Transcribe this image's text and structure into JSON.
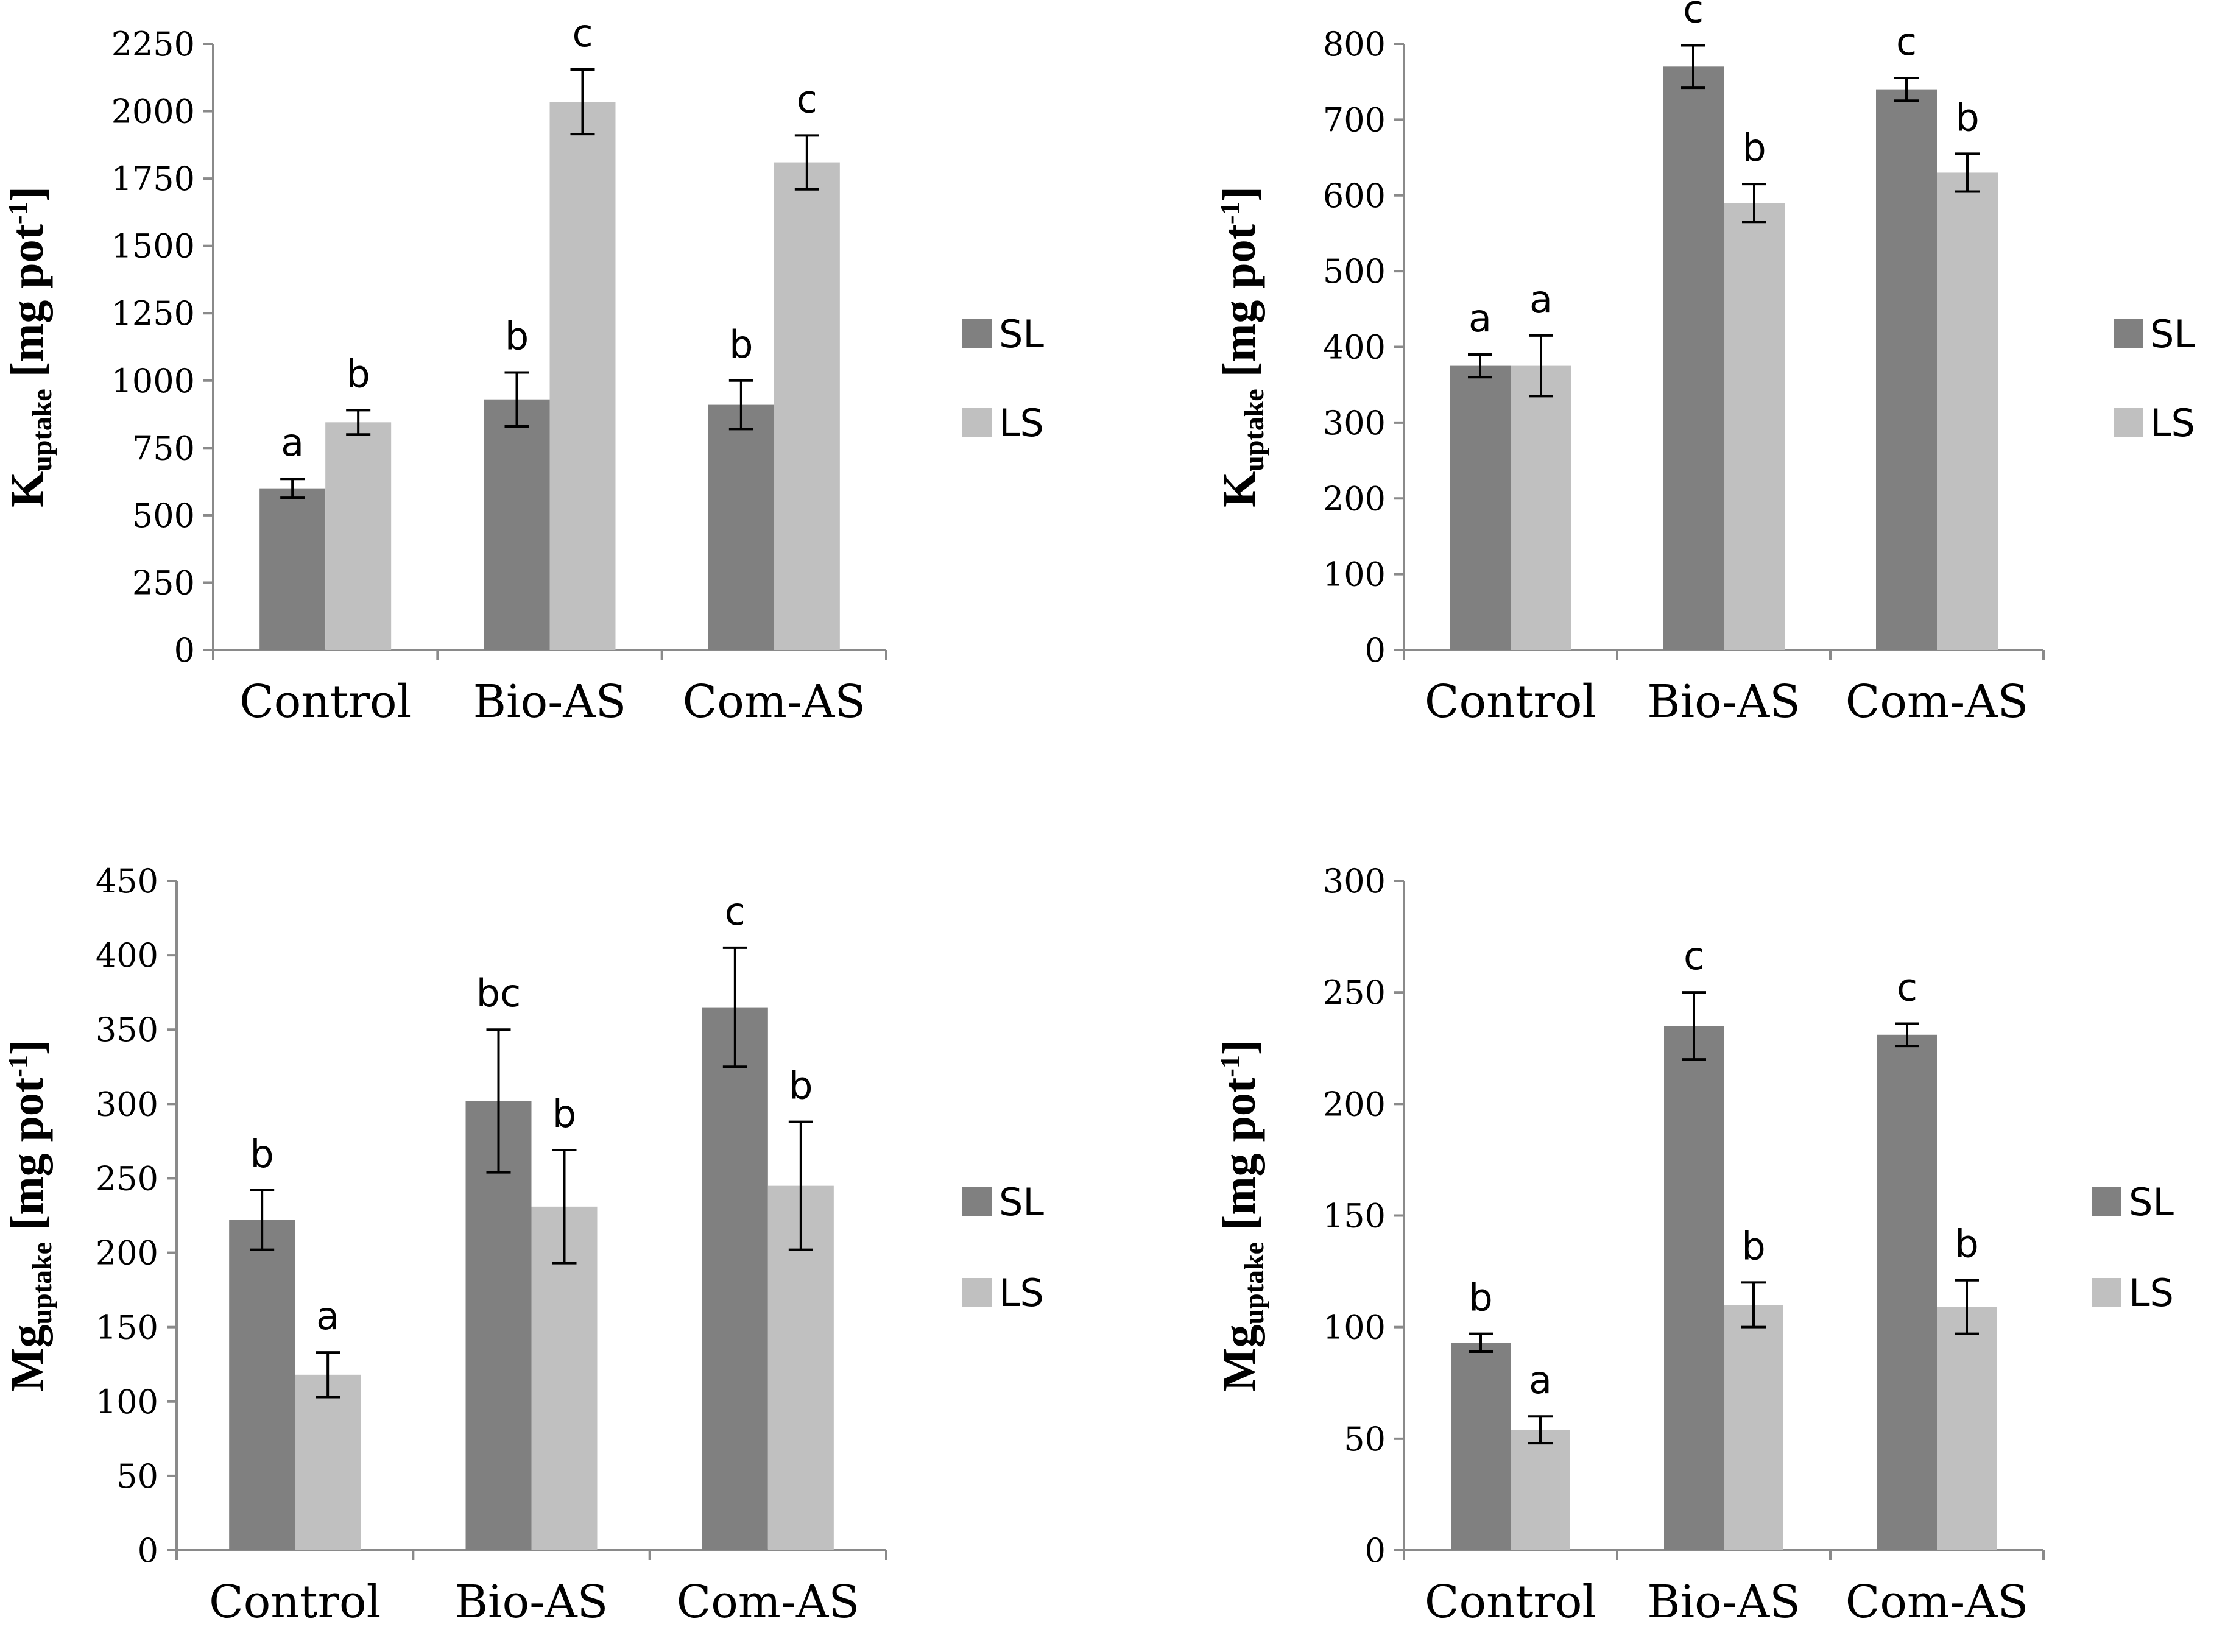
{
  "colors": {
    "SL": "#808080",
    "LS": "#c0c0c0"
  },
  "chart_data": [
    {
      "type": "bar",
      "name": "k-uptake-left",
      "ylabel": {
        "base": "K",
        "sub": "uptake",
        "unit": "[mg pot",
        "sup": "-1",
        "close": "]"
      },
      "ylim": [
        0,
        2250
      ],
      "yticks": [
        "0",
        "250",
        "500",
        "750",
        "1000",
        "1250",
        "1500",
        "1750",
        "2000",
        "2250"
      ],
      "categories": [
        "Control",
        "Bio-AS",
        "Com-AS"
      ],
      "series": [
        {
          "name": "SL",
          "values": [
            600,
            930,
            910
          ],
          "errors": [
            35,
            100,
            90
          ],
          "letters": [
            "a",
            "b",
            "b"
          ]
        },
        {
          "name": "LS",
          "values": [
            845,
            2035,
            1810
          ],
          "errors": [
            45,
            120,
            100
          ],
          "letters": [
            "b",
            "c",
            "c"
          ]
        }
      ],
      "legend": [
        "SL",
        "LS"
      ]
    },
    {
      "type": "bar",
      "name": "k-uptake-right",
      "ylabel": {
        "base": "K",
        "sub": "uptake",
        "unit": "[mg pot",
        "sup": "-1",
        "close": "]"
      },
      "ylim": [
        0,
        800
      ],
      "yticks": [
        "0",
        "100",
        "200",
        "300",
        "400",
        "500",
        "600",
        "700",
        "800"
      ],
      "categories": [
        "Control",
        "Bio-AS",
        "Com-AS"
      ],
      "series": [
        {
          "name": "SL",
          "values": [
            375,
            770,
            740
          ],
          "errors": [
            15,
            28,
            15
          ],
          "letters": [
            "a",
            "c",
            "c"
          ]
        },
        {
          "name": "LS",
          "values": [
            375,
            590,
            630
          ],
          "errors": [
            40,
            25,
            25
          ],
          "letters": [
            "a",
            "b",
            "b"
          ]
        }
      ],
      "legend": [
        "SL",
        "LS"
      ]
    },
    {
      "type": "bar",
      "name": "mg-uptake-left",
      "ylabel": {
        "base": "Mg",
        "sub": "uptake",
        "unit": "[mg pot",
        "sup": "-1",
        "close": "]"
      },
      "ylim": [
        0,
        450
      ],
      "yticks": [
        "0",
        "50",
        "100",
        "150",
        "200",
        "250",
        "300",
        "350",
        "400",
        "450"
      ],
      "categories": [
        "Control",
        "Bio-AS",
        "Com-AS"
      ],
      "series": [
        {
          "name": "SL",
          "values": [
            222,
            302,
            365
          ],
          "errors": [
            20,
            48,
            40
          ],
          "letters": [
            "b",
            "bc",
            "c"
          ]
        },
        {
          "name": "LS",
          "values": [
            118,
            231,
            245
          ],
          "errors": [
            15,
            38,
            43
          ],
          "letters": [
            "a",
            "b",
            "b"
          ]
        }
      ],
      "legend": [
        "SL",
        "LS"
      ]
    },
    {
      "type": "bar",
      "name": "mg-uptake-right",
      "ylabel": {
        "base": "Mg",
        "sub": "uptake",
        "unit": "[mg pot",
        "sup": "-1",
        "close": "]"
      },
      "ylim": [
        0,
        300
      ],
      "yticks": [
        "0",
        "50",
        "100",
        "150",
        "200",
        "250",
        "300"
      ],
      "categories": [
        "Control",
        "Bio-AS",
        "Com-AS"
      ],
      "series": [
        {
          "name": "SL",
          "values": [
            93,
            235,
            231
          ],
          "errors": [
            4,
            15,
            5
          ],
          "letters": [
            "b",
            "c",
            "c"
          ]
        },
        {
          "name": "LS",
          "values": [
            54,
            110,
            109
          ],
          "errors": [
            6,
            10,
            12
          ],
          "letters": [
            "a",
            "b",
            "b"
          ]
        }
      ],
      "legend": [
        "SL",
        "LS"
      ]
    }
  ]
}
